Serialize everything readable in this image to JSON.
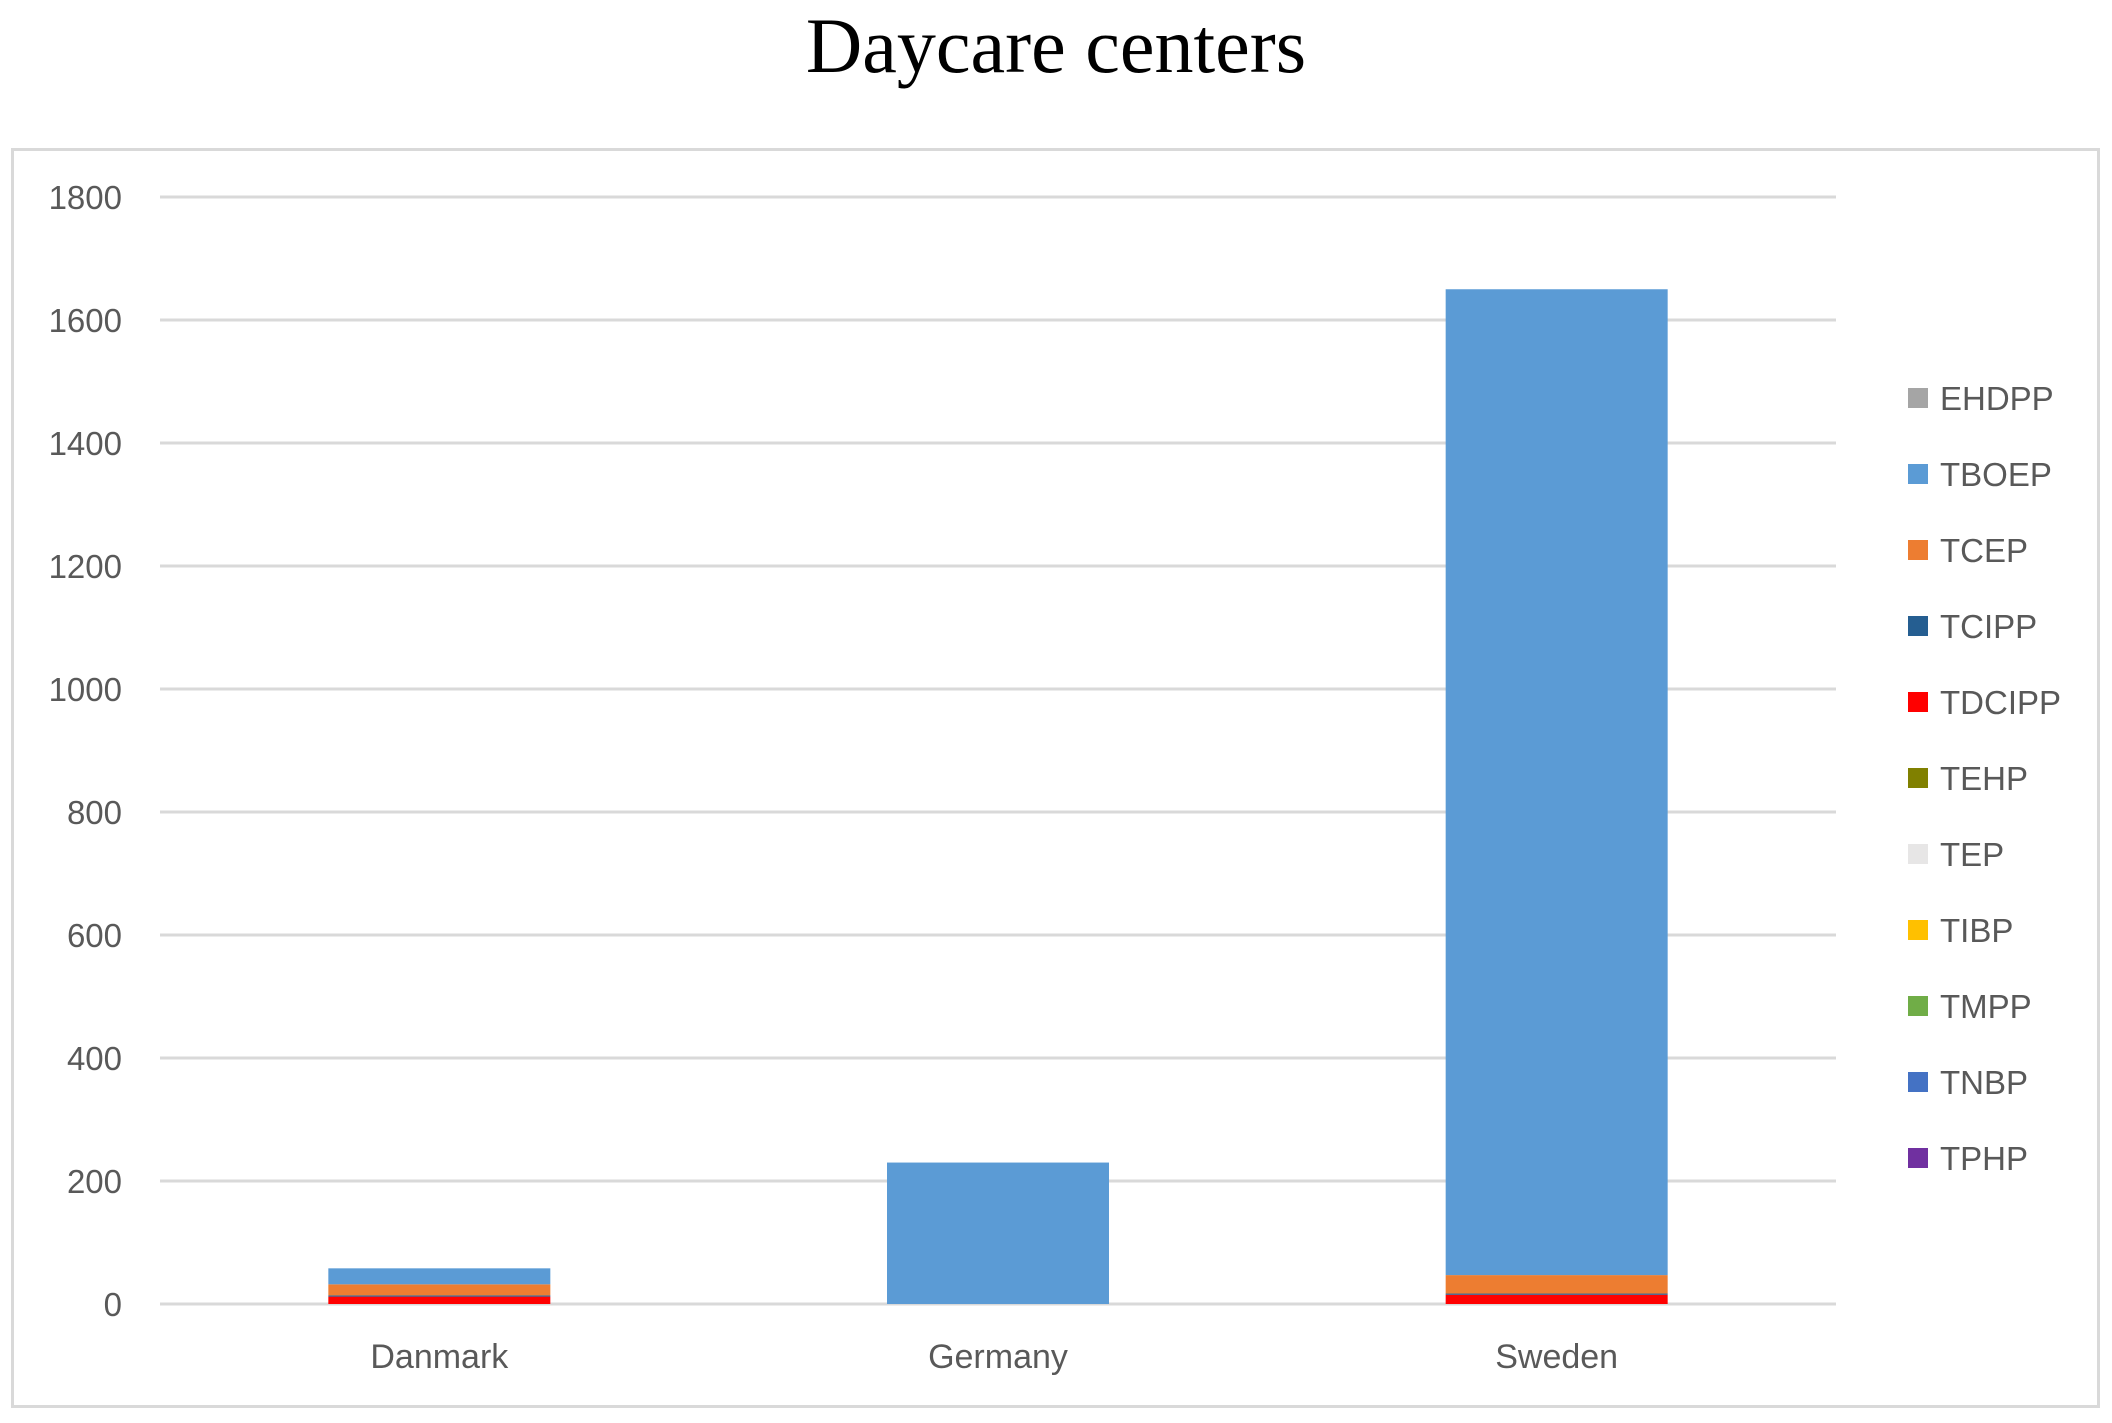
{
  "chart_data": {
    "type": "bar",
    "stacked": true,
    "title": "Daycare centers",
    "xlabel": "",
    "ylabel": "",
    "categories": [
      "Danmark",
      "Germany",
      "Sweden"
    ],
    "ylim": [
      0,
      1800
    ],
    "yticks": [
      0,
      200,
      400,
      600,
      800,
      1000,
      1200,
      1400,
      1600,
      1800
    ],
    "grid": true,
    "legend_position": "right",
    "series": [
      {
        "name": "TPHP",
        "color": "#7030a0",
        "values": [
          0,
          0,
          0
        ]
      },
      {
        "name": "TNBP",
        "color": "#4472c4",
        "values": [
          0,
          0,
          0
        ]
      },
      {
        "name": "TMPP",
        "color": "#70ad47",
        "values": [
          0,
          0,
          0
        ]
      },
      {
        "name": "TIBP",
        "color": "#ffc000",
        "values": [
          0,
          0,
          0
        ]
      },
      {
        "name": "TEP",
        "color": "#e7e6e6",
        "values": [
          0,
          0,
          0
        ]
      },
      {
        "name": "TEHP",
        "color": "#808000",
        "values": [
          0,
          0,
          0
        ]
      },
      {
        "name": "TDCIPP",
        "color": "#ff0000",
        "values": [
          12,
          0,
          15
        ]
      },
      {
        "name": "TCIPP",
        "color": "#255e91",
        "values": [
          2,
          0,
          2
        ]
      },
      {
        "name": "TCEP",
        "color": "#ed7d31",
        "values": [
          18,
          0,
          30
        ]
      },
      {
        "name": "TBOEP",
        "color": "#5b9bd5",
        "values": [
          26,
          230,
          1603
        ]
      },
      {
        "name": "EHDPP",
        "color": "#a5a5a5",
        "values": [
          0,
          0,
          0
        ]
      }
    ],
    "legend_order": [
      "EHDPP",
      "TBOEP",
      "TCEP",
      "TCIPP",
      "TDCIPP",
      "TEHP",
      "TEP",
      "TIBP",
      "TMPP",
      "TNBP",
      "TPHP"
    ]
  }
}
